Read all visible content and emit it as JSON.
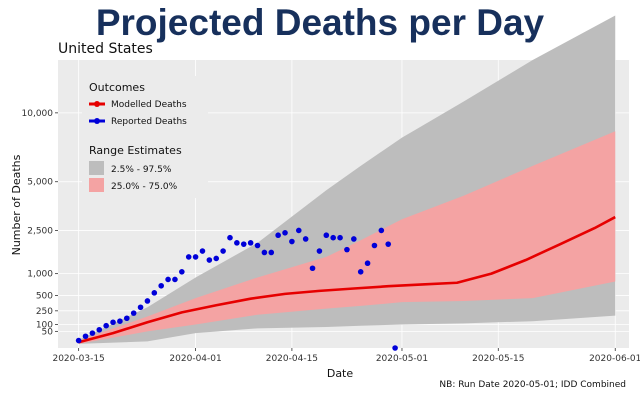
{
  "title": "Projected Deaths per Day",
  "subtitle": "United States",
  "footnote": "NB: Run Date 2020-05-01; IDD Combined",
  "colors": {
    "title": "#17305c",
    "panel": "#ebebeb",
    "modelled": "#e60000",
    "reported": "#0000d9",
    "range_outer": "#bdbdbd",
    "range_inner": "#f4a3a3"
  },
  "chart_data": {
    "type": "line",
    "xlabel": "Date",
    "ylabel": "Number of Deaths",
    "x_range": [
      "2020-03-12",
      "2020-06-03"
    ],
    "y_range": [
      0,
      15000
    ],
    "y_scale": "square-root",
    "grid": true,
    "x_ticks": [
      "2020-03-15",
      "2020-04-01",
      "2020-04-15",
      "2020-05-01",
      "2020-05-15",
      "2020-06-01"
    ],
    "y_ticks": [
      {
        "value": 50,
        "label": "50"
      },
      {
        "value": 100,
        "label": "100"
      },
      {
        "value": 250,
        "label": "250"
      },
      {
        "value": 500,
        "label": "500"
      },
      {
        "value": 1000,
        "label": "1,000"
      },
      {
        "value": 2500,
        "label": "2,500"
      },
      {
        "value": 5000,
        "label": "5,000"
      },
      {
        "value": 10000,
        "label": "10,000"
      }
    ],
    "legend": {
      "position": "top-left",
      "outcomes_title": "Outcomes",
      "ranges_title": "Range Estimates",
      "modelled_label": "Modelled Deaths",
      "reported_label": "Reported Deaths",
      "outer_label": "2.5% - 97.5%",
      "inner_label": "25.0% - 75.0%"
    },
    "modelled": {
      "x": [
        "2020-03-15",
        "2020-03-20",
        "2020-03-25",
        "2020-03-30",
        "2020-04-04",
        "2020-04-09",
        "2020-04-14",
        "2020-04-19",
        "2020-04-24",
        "2020-04-29",
        "2020-05-04",
        "2020-05-09",
        "2020-05-14",
        "2020-05-19",
        "2020-05-24",
        "2020-05-29",
        "2020-06-01"
      ],
      "y": [
        6,
        40,
        120,
        230,
        330,
        440,
        530,
        590,
        640,
        690,
        730,
        770,
        1000,
        1400,
        1950,
        2600,
        3100
      ]
    },
    "reported": {
      "x": [
        "2020-03-15",
        "2020-03-16",
        "2020-03-17",
        "2020-03-18",
        "2020-03-19",
        "2020-03-20",
        "2020-03-21",
        "2020-03-22",
        "2020-03-23",
        "2020-03-24",
        "2020-03-25",
        "2020-03-26",
        "2020-03-27",
        "2020-03-28",
        "2020-03-29",
        "2020-03-30",
        "2020-03-31",
        "2020-04-01",
        "2020-04-02",
        "2020-04-03",
        "2020-04-04",
        "2020-04-05",
        "2020-04-06",
        "2020-04-07",
        "2020-04-08",
        "2020-04-09",
        "2020-04-10",
        "2020-04-11",
        "2020-04-12",
        "2020-04-13",
        "2020-04-14",
        "2020-04-15",
        "2020-04-16",
        "2020-04-17",
        "2020-04-18",
        "2020-04-19",
        "2020-04-20",
        "2020-04-21",
        "2020-04-22",
        "2020-04-23",
        "2020-04-24",
        "2020-04-25",
        "2020-04-26",
        "2020-04-27",
        "2020-04-28",
        "2020-04-29",
        "2020-04-30"
      ],
      "y": [
        10,
        25,
        40,
        60,
        90,
        120,
        130,
        160,
        220,
        300,
        400,
        550,
        700,
        850,
        850,
        1050,
        1500,
        1500,
        1700,
        1400,
        1450,
        1700,
        2200,
        2000,
        1950,
        2000,
        1900,
        1650,
        1650,
        2300,
        2400,
        2050,
        2500,
        2150,
        1150,
        1700,
        2300,
        2200,
        2200,
        1750,
        2150,
        1050,
        1300,
        1900,
        2500,
        1950,
        0
      ]
    },
    "band_outer": {
      "x": [
        "2020-03-15",
        "2020-03-25",
        "2020-04-01",
        "2020-04-10",
        "2020-04-20",
        "2020-04-25",
        "2020-05-01",
        "2020-05-10",
        "2020-05-20",
        "2020-06-01"
      ],
      "low": [
        3,
        8,
        40,
        70,
        80,
        90,
        100,
        110,
        130,
        190
      ],
      "high": [
        12,
        300,
        900,
        2000,
        4500,
        6000,
        8000,
        11000,
        15000,
        20000
      ]
    },
    "band_inner": {
      "x": [
        "2020-03-15",
        "2020-03-25",
        "2020-04-01",
        "2020-04-10",
        "2020-04-20",
        "2020-04-25",
        "2020-05-01",
        "2020-05-10",
        "2020-05-20",
        "2020-06-01"
      ],
      "low": [
        3,
        50,
        100,
        200,
        280,
        320,
        380,
        400,
        450,
        800
      ],
      "high": [
        10,
        180,
        450,
        900,
        1500,
        2100,
        3000,
        4200,
        6000,
        8500
      ]
    }
  }
}
